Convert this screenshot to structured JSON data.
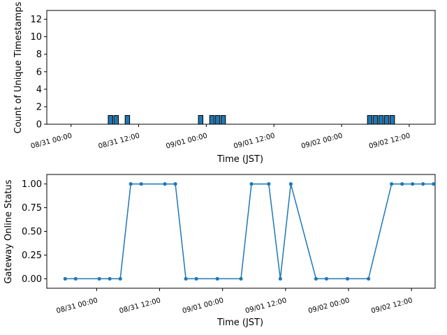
{
  "chart_data": [
    {
      "type": "bar",
      "title": "",
      "xlabel": "Time (JST)",
      "ylabel": "Count of Unique Timestamps",
      "ylim": [
        0,
        13
      ],
      "yticks": [
        0,
        2,
        4,
        6,
        8,
        10,
        12
      ],
      "grid": false,
      "x_tick_labels": [
        "08/31 00:00",
        "08/31 12:00",
        "09/01 00:00",
        "09/01 12:00",
        "09/02 00:00",
        "09/02 12:00"
      ],
      "x_ticks_hours": [
        0,
        12,
        24,
        36,
        48,
        60
      ],
      "xlim_hours": [
        -4.3,
        64.6
      ],
      "bars": [
        {
          "x_hours": 7.0,
          "value": 1
        },
        {
          "x_hours": 8.0,
          "value": 1
        },
        {
          "x_hours": 10.0,
          "value": 1
        },
        {
          "x_hours": 23.0,
          "value": 1
        },
        {
          "x_hours": 25.0,
          "value": 1
        },
        {
          "x_hours": 26.0,
          "value": 1
        },
        {
          "x_hours": 27.0,
          "value": 1
        },
        {
          "x_hours": 53.0,
          "value": 1
        },
        {
          "x_hours": 54.0,
          "value": 1
        },
        {
          "x_hours": 55.0,
          "value": 1
        },
        {
          "x_hours": 56.0,
          "value": 1
        },
        {
          "x_hours": 57.0,
          "value": 1
        }
      ],
      "bar_color": "#1f77b4"
    },
    {
      "type": "line",
      "title": "",
      "xlabel": "Time (JST)",
      "ylabel": "Gateway Online Status",
      "ylim": [
        -0.1,
        1.1
      ],
      "yticks": [
        "0.00",
        "0.25",
        "0.50",
        "0.75",
        "1.00"
      ],
      "grid": false,
      "x_tick_labels": [
        "08/31 00:00",
        "08/31 12:00",
        "09/01 00:00",
        "09/01 12:00",
        "09/02 00:00",
        "09/02 12:00"
      ],
      "x_ticks_hours": [
        0,
        12,
        24,
        36,
        48,
        60
      ],
      "xlim_hours": [
        -9.5,
        64.5
      ],
      "points": [
        {
          "x_hours": -6.0,
          "y": 0
        },
        {
          "x_hours": -4.0,
          "y": 0
        },
        {
          "x_hours": 0.5,
          "y": 0
        },
        {
          "x_hours": 2.5,
          "y": 0
        },
        {
          "x_hours": 4.5,
          "y": 0
        },
        {
          "x_hours": 6.5,
          "y": 1
        },
        {
          "x_hours": 8.5,
          "y": 1
        },
        {
          "x_hours": 13.0,
          "y": 1
        },
        {
          "x_hours": 15.0,
          "y": 1
        },
        {
          "x_hours": 17.0,
          "y": 0
        },
        {
          "x_hours": 19.0,
          "y": 0
        },
        {
          "x_hours": 23.0,
          "y": 0
        },
        {
          "x_hours": 27.5,
          "y": 0
        },
        {
          "x_hours": 29.5,
          "y": 1
        },
        {
          "x_hours": 32.8,
          "y": 1
        },
        {
          "x_hours": 35.0,
          "y": 0
        },
        {
          "x_hours": 37.0,
          "y": 1
        },
        {
          "x_hours": 41.8,
          "y": 0
        },
        {
          "x_hours": 43.8,
          "y": 0
        },
        {
          "x_hours": 47.8,
          "y": 0
        },
        {
          "x_hours": 51.8,
          "y": 0
        },
        {
          "x_hours": 56.2,
          "y": 1
        },
        {
          "x_hours": 58.2,
          "y": 1
        },
        {
          "x_hours": 60.2,
          "y": 1
        },
        {
          "x_hours": 62.2,
          "y": 1
        },
        {
          "x_hours": 64.2,
          "y": 1
        }
      ],
      "line_color": "#1f77b4"
    }
  ]
}
